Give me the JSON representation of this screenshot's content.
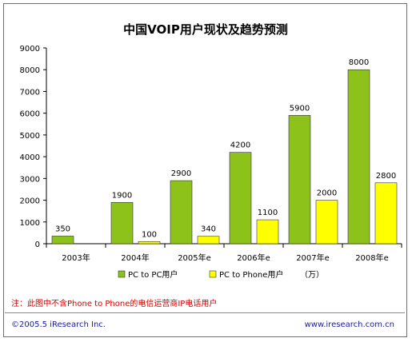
{
  "chart_data": {
    "type": "bar",
    "title": "中国VOIP用户现状及趋势预测",
    "categories": [
      "2003年",
      "2004年",
      "2005年e",
      "2006年e",
      "2007年e",
      "2008年e"
    ],
    "series": [
      {
        "name": "PC to PC用户",
        "values": [
          350,
          1900,
          2900,
          4200,
          5900,
          8000
        ],
        "color": "#8cc21a"
      },
      {
        "name": "PC to Phone用户",
        "values": [
          null,
          100,
          340,
          1100,
          2000,
          2800
        ],
        "color": "#ffff00"
      }
    ],
    "legend_unit": "（万）",
    "ylim": [
      0,
      9000
    ],
    "yticks": [
      0,
      1000,
      2000,
      3000,
      4000,
      5000,
      6000,
      7000,
      8000,
      9000
    ],
    "grid": false,
    "legend": "bottom"
  },
  "note": "注：此图中不含Phone to Phone的电信运营商IP电话用户",
  "footer": {
    "copyright": "©2005.5 iResearch Inc.",
    "url": "www.iresearch.com.cn"
  }
}
